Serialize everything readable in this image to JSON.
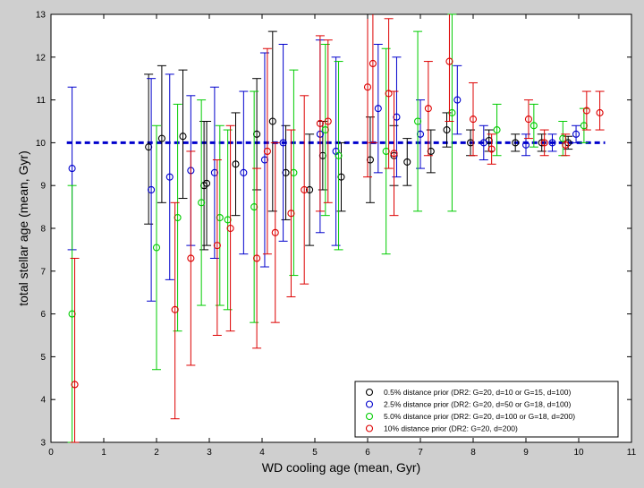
{
  "chart_data": {
    "type": "scatter",
    "title": "",
    "xlabel": "WD cooling age (mean, Gyr)",
    "ylabel": "total stellar age (mean, Gyr)",
    "xlim": [
      0,
      11
    ],
    "ylim": [
      3,
      13
    ],
    "xticks": [
      "0",
      "1",
      "2",
      "3",
      "4",
      "5",
      "6",
      "7",
      "8",
      "9",
      "10",
      "11"
    ],
    "yticks": [
      "3",
      "4",
      "5",
      "6",
      "7",
      "8",
      "9",
      "10",
      "11",
      "12",
      "13"
    ],
    "reference_line": {
      "y": 10,
      "color": "#0000cc",
      "style": "dashed"
    },
    "legend_position": "bottom-right",
    "series": [
      {
        "name": "0.5% distance prior (DR2: G=20, d=10 or G=15, d=100)",
        "color": "#000000",
        "points": [
          {
            "x": 1.85,
            "y": 9.9,
            "lo": 8.1,
            "hi": 11.6
          },
          {
            "x": 2.1,
            "y": 10.1,
            "lo": 8.6,
            "hi": 11.8
          },
          {
            "x": 2.5,
            "y": 10.15,
            "lo": 8.7,
            "hi": 11.7
          },
          {
            "x": 2.9,
            "y": 9.0,
            "lo": 7.5,
            "hi": 10.5
          },
          {
            "x": 2.95,
            "y": 9.05,
            "lo": 7.6,
            "hi": 10.5
          },
          {
            "x": 3.5,
            "y": 9.5,
            "lo": 8.3,
            "hi": 10.7
          },
          {
            "x": 3.9,
            "y": 10.2,
            "lo": 8.9,
            "hi": 11.5
          },
          {
            "x": 4.2,
            "y": 10.5,
            "lo": 8.4,
            "hi": 12.6
          },
          {
            "x": 4.45,
            "y": 9.3,
            "lo": 8.2,
            "hi": 10.4
          },
          {
            "x": 4.9,
            "y": 8.9,
            "lo": 7.6,
            "hi": 10.2
          },
          {
            "x": 5.15,
            "y": 9.7,
            "lo": 8.9,
            "hi": 10.5
          },
          {
            "x": 5.5,
            "y": 9.2,
            "lo": 8.4,
            "hi": 10.0
          },
          {
            "x": 6.05,
            "y": 9.6,
            "lo": 8.6,
            "hi": 10.6
          },
          {
            "x": 6.5,
            "y": 9.7,
            "lo": 9.0,
            "hi": 10.4
          },
          {
            "x": 6.75,
            "y": 9.55,
            "lo": 9.0,
            "hi": 10.1
          },
          {
            "x": 7.2,
            "y": 9.8,
            "lo": 9.3,
            "hi": 10.3
          },
          {
            "x": 7.5,
            "y": 10.3,
            "lo": 9.9,
            "hi": 10.7
          },
          {
            "x": 7.95,
            "y": 10.0,
            "lo": 9.7,
            "hi": 10.3
          },
          {
            "x": 8.3,
            "y": 10.05,
            "lo": 9.8,
            "hi": 10.3
          },
          {
            "x": 8.8,
            "y": 10.0,
            "lo": 9.8,
            "hi": 10.2
          },
          {
            "x": 9.3,
            "y": 10.0,
            "lo": 9.8,
            "hi": 10.2
          },
          {
            "x": 9.8,
            "y": 10.0,
            "lo": 9.85,
            "hi": 10.15
          }
        ]
      },
      {
        "name": "2.5% distance prior (DR2: G=20, d=50 or G=18, d=100)",
        "color": "#0000cc",
        "points": [
          {
            "x": 0.4,
            "y": 9.4,
            "lo": 7.5,
            "hi": 11.3
          },
          {
            "x": 1.9,
            "y": 8.9,
            "lo": 6.3,
            "hi": 11.5
          },
          {
            "x": 2.25,
            "y": 9.2,
            "lo": 6.8,
            "hi": 11.6
          },
          {
            "x": 2.65,
            "y": 9.35,
            "lo": 7.6,
            "hi": 11.1
          },
          {
            "x": 3.1,
            "y": 9.3,
            "lo": 7.3,
            "hi": 11.3
          },
          {
            "x": 3.65,
            "y": 9.3,
            "lo": 7.4,
            "hi": 11.2
          },
          {
            "x": 4.05,
            "y": 9.6,
            "lo": 7.1,
            "hi": 12.1
          },
          {
            "x": 4.4,
            "y": 10.0,
            "lo": 7.7,
            "hi": 12.3
          },
          {
            "x": 5.1,
            "y": 10.2,
            "lo": 7.9,
            "hi": 12.4
          },
          {
            "x": 5.4,
            "y": 9.8,
            "lo": 7.6,
            "hi": 12.0
          },
          {
            "x": 6.2,
            "y": 10.8,
            "lo": 9.3,
            "hi": 12.3
          },
          {
            "x": 6.55,
            "y": 10.6,
            "lo": 9.2,
            "hi": 12.0
          },
          {
            "x": 7.0,
            "y": 10.2,
            "lo": 9.4,
            "hi": 11.0
          },
          {
            "x": 7.7,
            "y": 11.0,
            "lo": 10.2,
            "hi": 11.8
          },
          {
            "x": 8.2,
            "y": 10.0,
            "lo": 9.6,
            "hi": 10.4
          },
          {
            "x": 9.0,
            "y": 9.95,
            "lo": 9.7,
            "hi": 10.2
          },
          {
            "x": 9.5,
            "y": 10.0,
            "lo": 9.8,
            "hi": 10.2
          },
          {
            "x": 9.95,
            "y": 10.2,
            "lo": 10.0,
            "hi": 10.4
          }
        ]
      },
      {
        "name": "5.0% distance prior (DR2: G=20, d=100 or G=18, d=200)",
        "color": "#00cc00",
        "points": [
          {
            "x": 0.4,
            "y": 6.0,
            "lo": 3.0,
            "hi": 9.0
          },
          {
            "x": 2.0,
            "y": 7.55,
            "lo": 4.7,
            "hi": 10.4
          },
          {
            "x": 2.4,
            "y": 8.25,
            "lo": 5.6,
            "hi": 10.9
          },
          {
            "x": 2.85,
            "y": 8.6,
            "lo": 6.2,
            "hi": 11.0
          },
          {
            "x": 3.2,
            "y": 8.25,
            "lo": 6.2,
            "hi": 10.4
          },
          {
            "x": 3.35,
            "y": 8.2,
            "lo": 6.1,
            "hi": 10.3
          },
          {
            "x": 3.85,
            "y": 8.5,
            "lo": 5.8,
            "hi": 11.2
          },
          {
            "x": 4.6,
            "y": 9.3,
            "lo": 6.9,
            "hi": 11.7
          },
          {
            "x": 5.2,
            "y": 10.3,
            "lo": 8.3,
            "hi": 12.3
          },
          {
            "x": 5.45,
            "y": 9.7,
            "lo": 7.5,
            "hi": 11.9
          },
          {
            "x": 6.35,
            "y": 9.8,
            "lo": 7.4,
            "hi": 12.2
          },
          {
            "x": 6.95,
            "y": 10.5,
            "lo": 8.4,
            "hi": 12.6
          },
          {
            "x": 7.6,
            "y": 10.7,
            "lo": 8.4,
            "hi": 13.0
          },
          {
            "x": 8.45,
            "y": 10.3,
            "lo": 9.7,
            "hi": 10.9
          },
          {
            "x": 9.15,
            "y": 10.4,
            "lo": 9.9,
            "hi": 10.9
          },
          {
            "x": 9.7,
            "y": 10.1,
            "lo": 9.7,
            "hi": 10.5
          },
          {
            "x": 10.1,
            "y": 10.4,
            "lo": 10.0,
            "hi": 10.8
          }
        ]
      },
      {
        "name": "10% distance prior (DR2: G=20, d=200)",
        "color": "#dd0000",
        "points": [
          {
            "x": 0.45,
            "y": 4.35,
            "lo": 3.0,
            "hi": 7.3
          },
          {
            "x": 2.35,
            "y": 6.1,
            "lo": 3.55,
            "hi": 8.6
          },
          {
            "x": 2.65,
            "y": 7.3,
            "lo": 4.8,
            "hi": 9.8
          },
          {
            "x": 3.15,
            "y": 7.6,
            "lo": 5.5,
            "hi": 9.6
          },
          {
            "x": 3.4,
            "y": 8.0,
            "lo": 5.6,
            "hi": 10.4
          },
          {
            "x": 3.9,
            "y": 7.3,
            "lo": 5.2,
            "hi": 9.4
          },
          {
            "x": 4.1,
            "y": 9.8,
            "lo": 7.4,
            "hi": 12.2
          },
          {
            "x": 4.25,
            "y": 7.9,
            "lo": 5.8,
            "hi": 10.0
          },
          {
            "x": 4.55,
            "y": 8.35,
            "lo": 6.4,
            "hi": 10.3
          },
          {
            "x": 4.8,
            "y": 8.9,
            "lo": 6.7,
            "hi": 11.1
          },
          {
            "x": 5.1,
            "y": 10.45,
            "lo": 8.4,
            "hi": 12.5
          },
          {
            "x": 5.25,
            "y": 10.5,
            "lo": 8.6,
            "hi": 12.4
          },
          {
            "x": 6.0,
            "y": 11.3,
            "lo": 9.2,
            "hi": 13.4
          },
          {
            "x": 6.1,
            "y": 11.85,
            "lo": 10.0,
            "hi": 13.7
          },
          {
            "x": 6.4,
            "y": 11.15,
            "lo": 9.4,
            "hi": 12.9
          },
          {
            "x": 6.5,
            "y": 9.75,
            "lo": 8.3,
            "hi": 11.2
          },
          {
            "x": 7.15,
            "y": 10.8,
            "lo": 9.7,
            "hi": 11.9
          },
          {
            "x": 7.55,
            "y": 11.9,
            "lo": 10.5,
            "hi": 13.3
          },
          {
            "x": 8.0,
            "y": 10.55,
            "lo": 9.7,
            "hi": 11.4
          },
          {
            "x": 8.35,
            "y": 9.85,
            "lo": 9.5,
            "hi": 10.2
          },
          {
            "x": 9.05,
            "y": 10.55,
            "lo": 10.1,
            "hi": 11.0
          },
          {
            "x": 9.35,
            "y": 10.0,
            "lo": 9.7,
            "hi": 10.3
          },
          {
            "x": 9.75,
            "y": 9.95,
            "lo": 9.7,
            "hi": 10.2
          },
          {
            "x": 10.15,
            "y": 10.75,
            "lo": 10.3,
            "hi": 11.2
          },
          {
            "x": 10.4,
            "y": 10.7,
            "lo": 10.3,
            "hi": 11.2
          }
        ]
      }
    ]
  }
}
